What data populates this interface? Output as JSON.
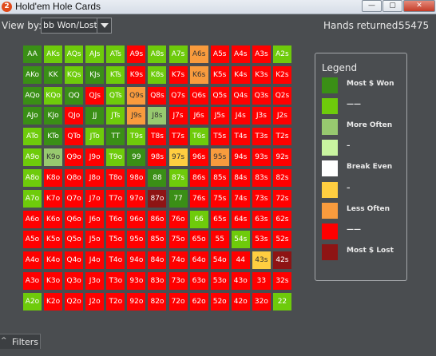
{
  "window": {
    "title": "Hold'em Hole Cards",
    "icon_glyph": "2",
    "controls": {
      "minimize": "—",
      "maximize": "▢",
      "close": "✕"
    }
  },
  "toolbar": {
    "view_by_label": "View by:",
    "view_by_value": "bb Won/Lost",
    "hands_label": "Hands returned:",
    "hands_value": "55475"
  },
  "colors": {
    "most_won": "#3a8f16",
    "won": "#6ecb0b",
    "more_often": "#97c96f",
    "slight_won": "#c9f5a0",
    "break_even": "#ffffff",
    "slight_lost": "#ffce40",
    "less_often": "#f99b3d",
    "lost": "#ff0000",
    "most_lost": "#8e1414"
  },
  "grid": {
    "rows": [
      {
        "labels": [
          "AA",
          "AKs",
          "AQs",
          "AJs",
          "ATs",
          "A9s",
          "A8s",
          "A7s",
          "A6s",
          "A5s",
          "A4s",
          "A3s",
          "A2s"
        ],
        "colors": [
          "most_won",
          "won",
          "won",
          "won",
          "won",
          "lost",
          "won",
          "won",
          "less_often",
          "lost",
          "lost",
          "lost",
          "won"
        ]
      },
      {
        "labels": [
          "AKo",
          "KK",
          "KQs",
          "KJs",
          "KTs",
          "K9s",
          "K8s",
          "K7s",
          "K6s",
          "K5s",
          "K4s",
          "K3s",
          "K2s"
        ],
        "colors": [
          "most_won",
          "most_won",
          "won",
          "most_won",
          "won",
          "lost",
          "won",
          "lost",
          "less_often",
          "lost",
          "lost",
          "lost",
          "lost"
        ]
      },
      {
        "labels": [
          "AQo",
          "KQo",
          "QQ",
          "QJs",
          "QTs",
          "Q9s",
          "Q8s",
          "Q7s",
          "Q6s",
          "Q5s",
          "Q4s",
          "Q3s",
          "Q2s"
        ],
        "colors": [
          "most_won",
          "won",
          "most_won",
          "lost",
          "won",
          "less_often",
          "lost",
          "lost",
          "lost",
          "lost",
          "lost",
          "lost",
          "lost"
        ]
      },
      {
        "labels": [
          "AJo",
          "KJo",
          "QJo",
          "JJ",
          "JTs",
          "J9s",
          "J8s",
          "J7s",
          "J6s",
          "J5s",
          "J4s",
          "J3s",
          "J2s"
        ],
        "colors": [
          "most_won",
          "most_won",
          "lost",
          "most_won",
          "won",
          "less_often",
          "more_often",
          "lost",
          "lost",
          "lost",
          "lost",
          "lost",
          "lost"
        ]
      },
      {
        "labels": [
          "ATo",
          "KTo",
          "QTo",
          "JTo",
          "TT",
          "T9s",
          "T8s",
          "T7s",
          "T6s",
          "T5s",
          "T4s",
          "T3s",
          "T2s"
        ],
        "colors": [
          "won",
          "most_won",
          "lost",
          "won",
          "most_won",
          "won",
          "lost",
          "lost",
          "won",
          "lost",
          "lost",
          "lost",
          "lost"
        ]
      },
      {
        "labels": [
          "A9o",
          "K9o",
          "Q9o",
          "J9o",
          "T9o",
          "99",
          "98s",
          "97s",
          "96s",
          "95s",
          "94s",
          "93s",
          "92s"
        ],
        "colors": [
          "won",
          "more_often",
          "lost",
          "lost",
          "won",
          "most_won",
          "lost",
          "slight_lost",
          "lost",
          "less_often",
          "lost",
          "lost",
          "lost"
        ]
      },
      {
        "labels": [
          "A8o",
          "K8o",
          "Q8o",
          "J8o",
          "T8o",
          "98o",
          "88",
          "87s",
          "86s",
          "85s",
          "84s",
          "83s",
          "82s"
        ],
        "colors": [
          "won",
          "lost",
          "lost",
          "lost",
          "lost",
          "lost",
          "most_won",
          "won",
          "lost",
          "lost",
          "lost",
          "lost",
          "lost"
        ]
      },
      {
        "labels": [
          "A7o",
          "K7o",
          "Q7o",
          "J7o",
          "T7o",
          "97o",
          "87o",
          "77",
          "76s",
          "75s",
          "74s",
          "73s",
          "72s"
        ],
        "colors": [
          "won",
          "lost",
          "lost",
          "lost",
          "lost",
          "lost",
          "most_lost",
          "most_won",
          "lost",
          "lost",
          "lost",
          "lost",
          "lost"
        ]
      },
      {
        "labels": [
          "A6o",
          "K6o",
          "Q6o",
          "J6o",
          "T6o",
          "96o",
          "86o",
          "76o",
          "66",
          "65s",
          "64s",
          "63s",
          "62s"
        ],
        "colors": [
          "lost",
          "lost",
          "lost",
          "lost",
          "lost",
          "lost",
          "lost",
          "lost",
          "won",
          "lost",
          "lost",
          "lost",
          "lost"
        ]
      },
      {
        "labels": [
          "A5o",
          "K5o",
          "Q5o",
          "J5o",
          "T5o",
          "95o",
          "85o",
          "75o",
          "65o",
          "55",
          "54s",
          "53s",
          "52s"
        ],
        "colors": [
          "lost",
          "lost",
          "lost",
          "lost",
          "lost",
          "lost",
          "lost",
          "lost",
          "lost",
          "lost",
          "won",
          "lost",
          "lost"
        ]
      },
      {
        "labels": [
          "A4o",
          "K4o",
          "Q4o",
          "J4o",
          "T4o",
          "94o",
          "84o",
          "74o",
          "64o",
          "54o",
          "44",
          "43s",
          "42s"
        ],
        "colors": [
          "lost",
          "lost",
          "lost",
          "lost",
          "lost",
          "lost",
          "lost",
          "lost",
          "lost",
          "lost",
          "lost",
          "slight_lost",
          "most_lost"
        ]
      },
      {
        "labels": [
          "A3o",
          "K3o",
          "Q3o",
          "J3o",
          "T3o",
          "93o",
          "83o",
          "73o",
          "63o",
          "53o",
          "43o",
          "33",
          "32s"
        ],
        "colors": [
          "lost",
          "lost",
          "lost",
          "lost",
          "lost",
          "lost",
          "lost",
          "lost",
          "lost",
          "lost",
          "lost",
          "lost",
          "lost"
        ]
      },
      {
        "labels": [
          "A2o",
          "K2o",
          "Q2o",
          "J2o",
          "T2o",
          "92o",
          "82o",
          "72o",
          "62o",
          "52o",
          "42o",
          "32o",
          "22"
        ],
        "colors": [
          "won",
          "lost",
          "lost",
          "lost",
          "lost",
          "lost",
          "lost",
          "lost",
          "lost",
          "lost",
          "lost",
          "lost",
          "won"
        ]
      }
    ]
  },
  "legend": {
    "title": "Legend",
    "items": [
      {
        "label": "Most $ Won",
        "color": "most_won"
      },
      {
        "label": "——",
        "color": "won"
      },
      {
        "label": "More Often",
        "color": "more_often"
      },
      {
        "label": "–",
        "color": "slight_won"
      },
      {
        "label": "Break Even",
        "color": "break_even"
      },
      {
        "label": "–",
        "color": "slight_lost"
      },
      {
        "label": "Less Often",
        "color": "less_often"
      },
      {
        "label": "——",
        "color": "lost"
      },
      {
        "label": "Most $ Lost",
        "color": "most_lost"
      }
    ]
  },
  "footer": {
    "filters_caret": "^",
    "filters_label": "Filters"
  }
}
